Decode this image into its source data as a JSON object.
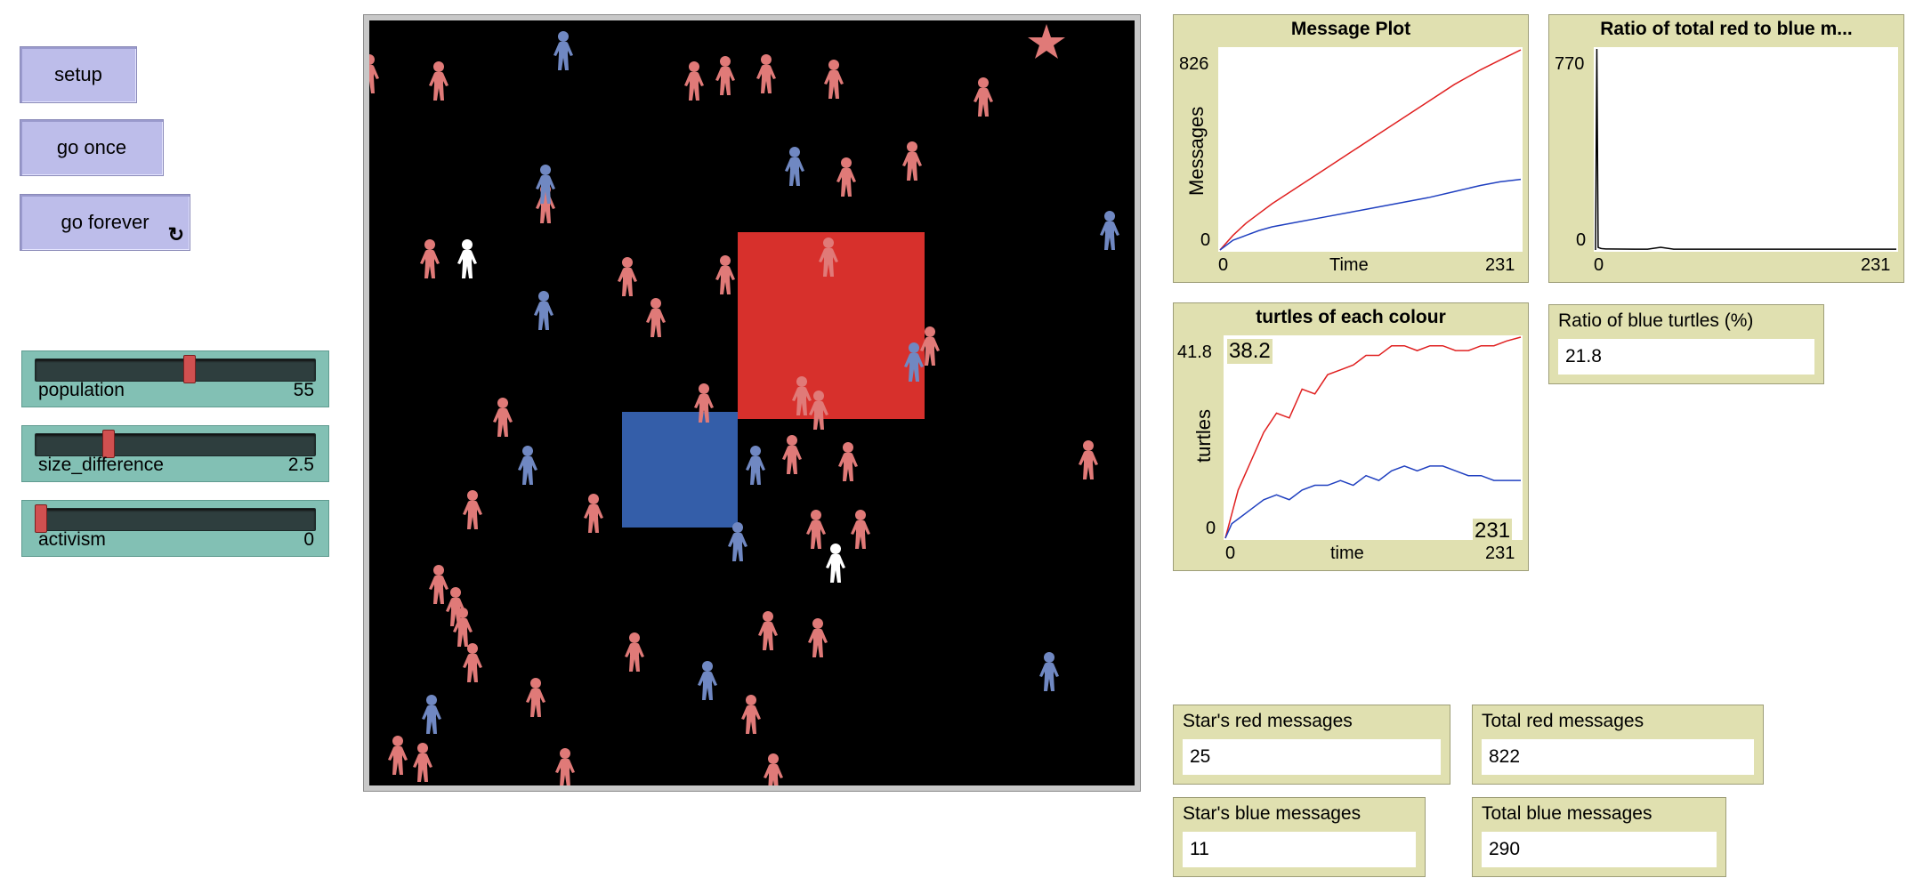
{
  "buttons": {
    "setup": "setup",
    "go_once": "go once",
    "go_forever": "go forever",
    "forever_glyph": "↻"
  },
  "sliders": [
    {
      "name": "population",
      "value": "55",
      "fraction": 0.55
    },
    {
      "name": "size_difference",
      "value": "2.5",
      "fraction": 0.25
    },
    {
      "name": "activism",
      "value": "0",
      "fraction": 0.0
    }
  ],
  "world": {
    "red_patch_color": "#d7302c",
    "blue_patch_color": "#345ea9",
    "red_turtle_color": "#e07a78",
    "blue_turtle_color": "#7088c2",
    "white_turtle_color": "#ffffff",
    "star_color": "#e07a78"
  },
  "plots": {
    "message_plot": {
      "title": "Message Plot",
      "y_label": "Messages",
      "x_label": "Time",
      "y_max": "826",
      "y_min": "0",
      "x_min": "0",
      "x_max": "231"
    },
    "ratio_plot": {
      "title": "Ratio of total red to blue m...",
      "y_max": "770",
      "y_min": "0",
      "x_min": "0",
      "x_max": "231"
    },
    "turtles_plot": {
      "title": "turtles of each colour",
      "y_label": "turtles",
      "x_label": "time",
      "y_max": "41.8",
      "y_min": "0",
      "x_min": "0",
      "x_max": "231",
      "hover_y": "38.2",
      "hover_x": "231"
    }
  },
  "chart_data": [
    {
      "type": "line",
      "title": "Message Plot",
      "xlabel": "Time",
      "ylabel": "Messages",
      "xlim": [
        0,
        231
      ],
      "ylim": [
        0,
        826
      ],
      "x": [
        0,
        10,
        20,
        30,
        40,
        60,
        80,
        100,
        120,
        140,
        160,
        180,
        200,
        215,
        231
      ],
      "series": [
        {
          "color": "#e02020",
          "values": [
            0,
            60,
            110,
            150,
            190,
            260,
            330,
            400,
            470,
            540,
            610,
            680,
            740,
            780,
            822
          ]
        },
        {
          "color": "#2040c0",
          "values": [
            0,
            40,
            60,
            80,
            95,
            115,
            135,
            155,
            175,
            195,
            215,
            240,
            265,
            280,
            290
          ]
        }
      ]
    },
    {
      "type": "line",
      "title": "Ratio of total red to blue m...",
      "xlim": [
        0,
        231
      ],
      "ylim": [
        0,
        770
      ],
      "x": [
        0,
        1,
        2,
        3,
        4,
        5,
        8,
        10,
        30,
        40,
        50,
        60,
        100,
        150,
        200,
        231
      ],
      "series": [
        {
          "color": "#000000",
          "values": [
            0,
            770,
            10,
            8,
            6,
            5,
            4,
            4,
            3,
            3,
            10,
            3,
            3,
            3,
            3,
            3
          ]
        }
      ]
    },
    {
      "type": "line",
      "title": "turtles of each colour",
      "xlabel": "time",
      "ylabel": "turtles",
      "xlim": [
        0,
        231
      ],
      "ylim": [
        0,
        41.8
      ],
      "x": [
        0,
        5,
        10,
        20,
        30,
        40,
        50,
        60,
        70,
        80,
        90,
        100,
        110,
        120,
        130,
        140,
        150,
        160,
        170,
        180,
        190,
        200,
        210,
        220,
        231
      ],
      "series": [
        {
          "color": "#e02020",
          "values": [
            0,
            5,
            10,
            16,
            22,
            26,
            25,
            31,
            30,
            34,
            35,
            36,
            38,
            38,
            40,
            40,
            39,
            40,
            40,
            39,
            39,
            40,
            40,
            41,
            41.8
          ]
        },
        {
          "color": "#2040c0",
          "values": [
            0,
            3,
            4,
            6,
            8,
            9,
            8,
            10,
            11,
            11,
            12,
            11,
            13,
            12,
            14,
            15,
            14,
            15,
            15,
            14,
            13,
            13,
            12,
            12,
            12
          ]
        }
      ]
    }
  ],
  "monitors": {
    "blue_ratio": {
      "label": "Ratio of blue turtles (%)",
      "value": "21.8"
    },
    "star_red": {
      "label": "Star's red messages",
      "value": "25"
    },
    "total_red": {
      "label": "Total red messages",
      "value": "822"
    },
    "star_blue": {
      "label": "Star's blue messages",
      "value": "11"
    },
    "total_blue": {
      "label": "Total blue messages",
      "value": "290"
    }
  }
}
